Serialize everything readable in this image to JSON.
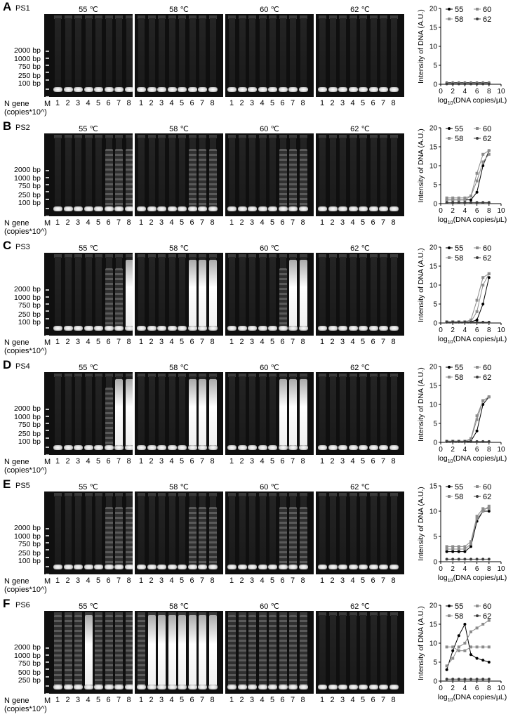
{
  "common": {
    "n_gene_line1": "N gene",
    "n_gene_line2": "(copies*10^)",
    "marker_lane": "M",
    "lane_numbers": [
      "1",
      "2",
      "3",
      "4",
      "5",
      "6",
      "7",
      "8"
    ],
    "temperatures": [
      "55 ℃",
      "58 ℃",
      "60 ℃",
      "62 ℃"
    ],
    "y_axis_label": "Intensity of DNA (A.U.)",
    "x_axis_label_pre": "log",
    "x_axis_label_sub": "10",
    "x_axis_label_post": "(DNA copies/µL)",
    "x_ticks": [
      "0",
      "2",
      "4",
      "6",
      "8",
      "10"
    ]
  },
  "panels": [
    {
      "letter": "A",
      "name": "PS1",
      "markers": [
        "2000 bp",
        "1000 bp",
        "750 bp",
        "250 bp",
        "100 bp"
      ]
    },
    {
      "letter": "B",
      "name": "PS2",
      "markers": [
        "2000 bp",
        "1000 bp",
        "750 bp",
        "250 bp",
        "100 bp"
      ]
    },
    {
      "letter": "C",
      "name": "PS3",
      "markers": [
        "2000 bp",
        "1000 bp",
        "750 bp",
        "250 bp",
        "100 bp"
      ]
    },
    {
      "letter": "D",
      "name": "PS4",
      "markers": [
        "2000 bp",
        "1000 bp",
        "750 bp",
        "250 bp",
        "100 bp"
      ]
    },
    {
      "letter": "E",
      "name": "PS5",
      "markers": [
        "2000 bp",
        "1000 bp",
        "750 bp",
        "250 bp",
        "100 bp"
      ]
    },
    {
      "letter": "F",
      "name": "PS6",
      "markers": [
        "2000 bp",
        "1000 bp",
        "750 bp",
        "500 bp",
        "250 bp"
      ]
    }
  ],
  "colors": {
    "s55": "#000000",
    "s58": "#8c8c8c",
    "s60": "#8c8c8c",
    "s62": "#3c3c3c"
  },
  "chart_data": [
    {
      "type": "line",
      "panel": "A",
      "ylim": [
        0,
        20
      ],
      "yticks": [
        "0",
        "5",
        "10",
        "15",
        "20"
      ],
      "xlim": [
        0,
        10
      ],
      "series": [
        {
          "name": "55",
          "x": [
            1,
            2,
            3,
            4,
            5,
            6,
            7,
            8
          ],
          "y": [
            0.4,
            0.4,
            0.4,
            0.4,
            0.4,
            0.4,
            0.4,
            0.4
          ]
        },
        {
          "name": "58",
          "x": [
            1,
            2,
            3,
            4,
            5,
            6,
            7,
            8
          ],
          "y": [
            0.3,
            0.3,
            0.3,
            0.3,
            0.3,
            0.3,
            0.3,
            0.3
          ]
        },
        {
          "name": "60",
          "x": [
            1,
            2,
            3,
            4,
            5,
            6,
            7,
            8
          ],
          "y": [
            0.2,
            0.2,
            0.2,
            0.2,
            0.2,
            0.2,
            0.2,
            0.2
          ]
        },
        {
          "name": "62",
          "x": [
            1,
            2,
            3,
            4,
            5,
            6,
            7,
            8
          ],
          "y": [
            0.1,
            0.1,
            0.1,
            0.1,
            0.1,
            0.1,
            0.1,
            0.1
          ]
        }
      ]
    },
    {
      "type": "line",
      "panel": "B",
      "ylim": [
        0,
        20
      ],
      "yticks": [
        "0",
        "5",
        "10",
        "15",
        "20"
      ],
      "xlim": [
        0,
        10
      ],
      "series": [
        {
          "name": "55",
          "x": [
            1,
            2,
            3,
            4,
            5,
            6,
            7,
            8
          ],
          "y": [
            1,
            1,
            1,
            1,
            1,
            3,
            10,
            14
          ]
        },
        {
          "name": "58",
          "x": [
            1,
            2,
            3,
            4,
            5,
            6,
            7,
            8
          ],
          "y": [
            1,
            1,
            1,
            1,
            2,
            8,
            13,
            14
          ]
        },
        {
          "name": "60",
          "x": [
            1,
            2,
            3,
            4,
            5,
            6,
            7,
            8
          ],
          "y": [
            1.5,
            1.5,
            1.5,
            1.5,
            2,
            6,
            11,
            13
          ]
        },
        {
          "name": "62",
          "x": [
            1,
            2,
            3,
            4,
            5,
            6,
            7,
            8
          ],
          "y": [
            0.3,
            0.3,
            0.3,
            0.3,
            0.3,
            0.3,
            0.3,
            0.3
          ]
        }
      ]
    },
    {
      "type": "line",
      "panel": "C",
      "ylim": [
        0,
        20
      ],
      "yticks": [
        "0",
        "5",
        "10",
        "15",
        "20"
      ],
      "xlim": [
        0,
        10
      ],
      "series": [
        {
          "name": "55",
          "x": [
            1,
            2,
            3,
            4,
            5,
            6,
            7,
            8
          ],
          "y": [
            0.3,
            0.3,
            0.3,
            0.3,
            0.3,
            0.8,
            5,
            12
          ]
        },
        {
          "name": "58",
          "x": [
            1,
            2,
            3,
            4,
            5,
            6,
            7,
            8
          ],
          "y": [
            0.3,
            0.3,
            0.3,
            0.3,
            0.8,
            6,
            12,
            13
          ]
        },
        {
          "name": "60",
          "x": [
            1,
            2,
            3,
            4,
            5,
            6,
            7,
            8
          ],
          "y": [
            0.3,
            0.3,
            0.3,
            0.3,
            0.3,
            3,
            10,
            13
          ]
        },
        {
          "name": "62",
          "x": [
            1,
            2,
            3,
            4,
            5,
            6,
            7,
            8
          ],
          "y": [
            0.2,
            0.2,
            0.2,
            0.2,
            0.2,
            0.2,
            0.2,
            0.2
          ]
        }
      ]
    },
    {
      "type": "line",
      "panel": "D",
      "ylim": [
        0,
        20
      ],
      "yticks": [
        "0",
        "5",
        "10",
        "15",
        "20"
      ],
      "xlim": [
        0,
        10
      ],
      "series": [
        {
          "name": "55",
          "x": [
            1,
            2,
            3,
            4,
            5,
            6,
            7,
            8
          ],
          "y": [
            0.3,
            0.3,
            0.3,
            0.3,
            0.3,
            3,
            10,
            12
          ]
        },
        {
          "name": "58",
          "x": [
            1,
            2,
            3,
            4,
            5,
            6,
            7,
            8
          ],
          "y": [
            0.3,
            0.3,
            0.3,
            0.3,
            0.8,
            6,
            11,
            12
          ]
        },
        {
          "name": "60",
          "x": [
            1,
            2,
            3,
            4,
            5,
            6,
            7,
            8
          ],
          "y": [
            0.3,
            0.3,
            0.3,
            0.3,
            1,
            7,
            11,
            12
          ]
        },
        {
          "name": "62",
          "x": [
            1,
            2,
            3,
            4,
            5,
            6,
            7,
            8
          ],
          "y": [
            0.2,
            0.2,
            0.2,
            0.2,
            0.2,
            0.2,
            0.2,
            0.2
          ]
        }
      ]
    },
    {
      "type": "line",
      "panel": "E",
      "ylim": [
        0,
        15
      ],
      "yticks": [
        "0",
        "5",
        "10",
        "15"
      ],
      "xlim": [
        0,
        10
      ],
      "series": [
        {
          "name": "55",
          "x": [
            1,
            2,
            3,
            4,
            5,
            6,
            7,
            8
          ],
          "y": [
            2,
            2,
            2,
            2,
            3,
            8,
            10,
            10
          ]
        },
        {
          "name": "58",
          "x": [
            1,
            2,
            3,
            4,
            5,
            6,
            7,
            8
          ],
          "y": [
            3,
            3,
            3,
            3,
            4,
            9,
            10.5,
            10.5
          ]
        },
        {
          "name": "60",
          "x": [
            1,
            2,
            3,
            4,
            5,
            6,
            7,
            8
          ],
          "y": [
            2.5,
            2.5,
            2.5,
            2.5,
            3.5,
            8.5,
            10,
            11
          ]
        },
        {
          "name": "62",
          "x": [
            1,
            2,
            3,
            4,
            5,
            6,
            7,
            8
          ],
          "y": [
            0.5,
            0.5,
            0.5,
            0.5,
            0.5,
            0.5,
            0.5,
            0.5
          ]
        }
      ]
    },
    {
      "type": "line",
      "panel": "F",
      "ylim": [
        0,
        20
      ],
      "yticks": [
        "0",
        "5",
        "10",
        "15",
        "20"
      ],
      "xlim": [
        0,
        10
      ],
      "series": [
        {
          "name": "55",
          "x": [
            1,
            2,
            3,
            4,
            5,
            6,
            7,
            8
          ],
          "y": [
            3,
            8,
            12,
            15,
            7,
            6,
            5.5,
            5
          ]
        },
        {
          "name": "58",
          "x": [
            1,
            2,
            3,
            4,
            5,
            6,
            7,
            8
          ],
          "y": [
            4,
            6,
            9,
            10,
            13,
            14,
            15,
            16
          ]
        },
        {
          "name": "60",
          "x": [
            1,
            2,
            3,
            4,
            5,
            6,
            7,
            8
          ],
          "y": [
            9,
            9,
            8,
            8,
            9,
            9,
            9,
            9
          ]
        },
        {
          "name": "62",
          "x": [
            1,
            2,
            3,
            4,
            5,
            6,
            7,
            8
          ],
          "y": [
            0.5,
            0.5,
            0.5,
            0.5,
            0.5,
            0.5,
            0.5,
            0.5
          ]
        }
      ]
    }
  ]
}
